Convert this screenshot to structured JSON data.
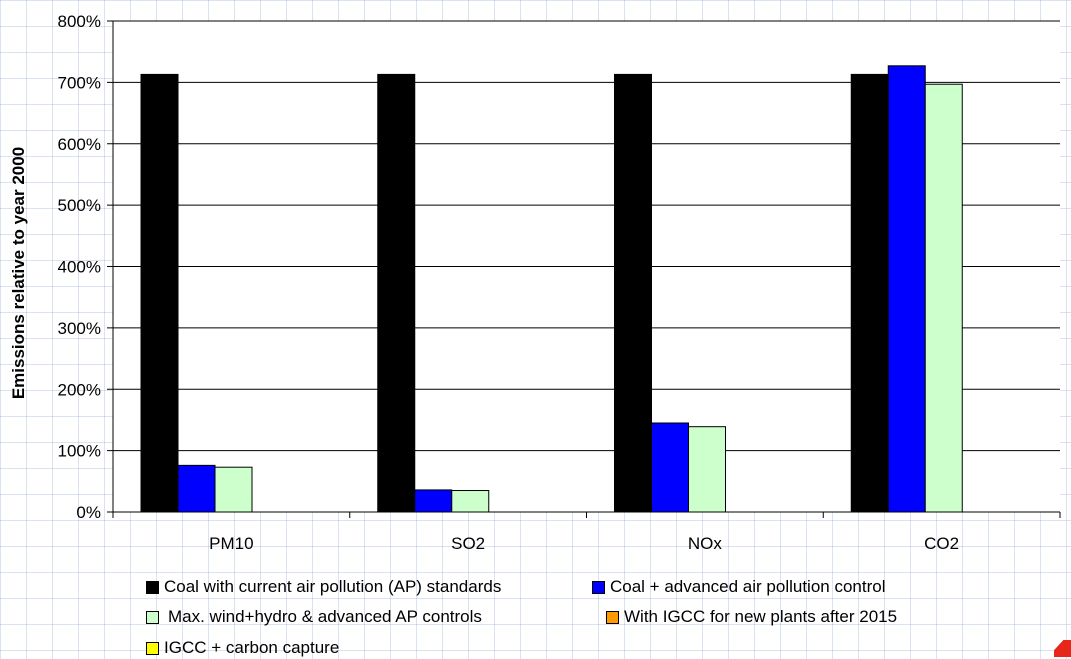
{
  "chart_data": {
    "type": "bar",
    "title": "",
    "xlabel": "",
    "ylabel": "Emissions relative to year 2000",
    "categories": [
      "PM10",
      "SO2",
      "NOx",
      "CO2"
    ],
    "ylim": [
      0,
      800
    ],
    "yticks": [
      0,
      100,
      200,
      300,
      400,
      500,
      600,
      700,
      800
    ],
    "ytick_labels": [
      "0%",
      "100%",
      "200%",
      "300%",
      "400%",
      "500%",
      "600%",
      "700%",
      "800%"
    ],
    "grid": "horizontal",
    "legend_position": "bottom",
    "series": [
      {
        "name": "Coal with current air pollution (AP) standards",
        "color": "#000000",
        "values": [
          713,
          713,
          713,
          713
        ]
      },
      {
        "name": "Coal + advanced air pollution control",
        "color": "#0000ff",
        "values": [
          76,
          36,
          145,
          727
        ]
      },
      {
        "name": "Max. wind+hydro & advanced AP controls",
        "color": "#ccffcc",
        "values": [
          73,
          35,
          139,
          697
        ]
      },
      {
        "name": "With IGCC for new plants after 2015",
        "color": "#ff9900",
        "values": [
          null,
          null,
          null,
          null
        ]
      },
      {
        "name": "IGCC + carbon capture",
        "color": "#ffff00",
        "values": [
          null,
          null,
          null,
          null
        ]
      }
    ]
  }
}
